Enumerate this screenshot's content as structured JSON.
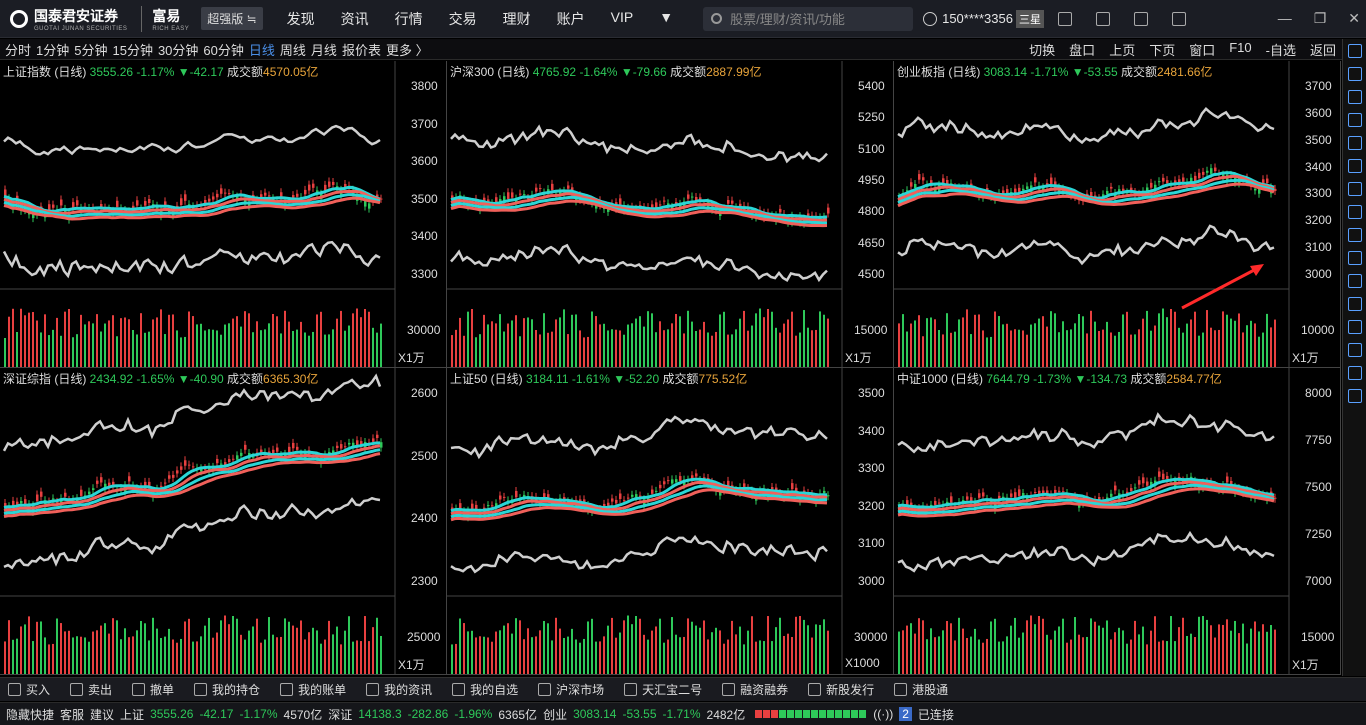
{
  "topbar": {
    "brand": "国泰君安证券",
    "brand_sub": "GUOTAI JUNAN SECURITIES",
    "brand2": "富易",
    "brand2_sub": "RICH EASY",
    "edition": "超强版 ≒",
    "nav": [
      "发现",
      "资讯",
      "行情",
      "交易",
      "理财",
      "账户",
      "VIP"
    ],
    "search_placeholder": "股票/理财/资讯/功能",
    "user": "150****3356",
    "star": "三星"
  },
  "periods": [
    "分时",
    "1分钟",
    "5分钟",
    "15分钟",
    "30分钟",
    "60分钟",
    "日线",
    "周线",
    "月线",
    "报价表",
    "更多 〉"
  ],
  "active_period": "日线",
  "toolbar_right": [
    "切换",
    "盘口",
    "上页",
    "下页",
    "窗口",
    "F10",
    "-自选",
    "返回"
  ],
  "panels": [
    {
      "name": "上证指数 (日线)",
      "price": "3555.26",
      "pct": "-1.17%",
      "chg": "▼-42.17",
      "amt_label": "成交额",
      "amt": "4570.05亿",
      "axis": [
        "3800",
        "3700",
        "3600",
        "3500",
        "3400",
        "3300"
      ],
      "vol_axis": "30000",
      "unit": "X1万"
    },
    {
      "name": "沪深300 (日线)",
      "price": "4765.92",
      "pct": "-1.64%",
      "chg": "▼-79.66",
      "amt_label": "成交额",
      "amt": "2887.99亿",
      "axis": [
        "5400",
        "5250",
        "5100",
        "4950",
        "4800",
        "4650",
        "4500"
      ],
      "vol_axis": "15000",
      "unit": "X1万"
    },
    {
      "name": "创业板指 (日线)",
      "price": "3083.14",
      "pct": "-1.71%",
      "chg": "▼-53.55",
      "amt_label": "成交额",
      "amt": "2481.66亿",
      "axis": [
        "3700",
        "3600",
        "3500",
        "3400",
        "3300",
        "3200",
        "3100",
        "3000"
      ],
      "vol_axis": "10000",
      "unit": "X1万"
    },
    {
      "name": "深证综指 (日线)",
      "price": "2434.92",
      "pct": "-1.65%",
      "chg": "▼-40.90",
      "amt_label": "成交额",
      "amt": "6365.30亿",
      "axis": [
        "2600",
        "2500",
        "2400",
        "2300"
      ],
      "vol_axis": "25000",
      "unit": "X1万"
    },
    {
      "name": "上证50 (日线)",
      "price": "3184.11",
      "pct": "-1.61%",
      "chg": "▼-52.20",
      "amt_label": "成交额",
      "amt": "775.52亿",
      "axis": [
        "3500",
        "3400",
        "3300",
        "3200",
        "3100",
        "3000"
      ],
      "vol_axis": "30000",
      "unit": "X1000"
    },
    {
      "name": "中证1000 (日线)",
      "price": "7644.79",
      "pct": "-1.73%",
      "chg": "▼-134.73",
      "amt_label": "成交额",
      "amt": "2584.77亿",
      "axis": [
        "8000",
        "7750",
        "7500",
        "7250",
        "7000"
      ],
      "vol_axis": "15000",
      "unit": "X1万"
    }
  ],
  "tradebar": [
    "买入",
    "卖出",
    "撤单",
    "我的持仓",
    "我的账单",
    "我的资讯",
    "我的自选",
    "沪深市场",
    "天汇宝二号",
    "融资融券",
    "新股发行",
    "港股通"
  ],
  "statusbar": {
    "hide": "隐藏快捷",
    "service": "客服",
    "suggest": "建议",
    "sh_label": "上证",
    "sh_price": "3555.26",
    "sh_chg": "-42.17",
    "sh_pct": "-1.17%",
    "sh_amt": "4570亿",
    "sz_label": "深证",
    "sz_price": "14138.3",
    "sz_chg": "-282.86",
    "sz_pct": "-1.96%",
    "sz_amt": "6365亿",
    "cy_label": "创业",
    "cy_price": "3083.14",
    "cy_chg": "-53.55",
    "cy_pct": "-1.71%",
    "cy_amt": "2482亿",
    "conn_count": "2",
    "conn": "已连接"
  },
  "colors": {
    "up": "#e84040",
    "down": "#2ec95a",
    "cyan_ma": "#2ad6d6",
    "red_ma": "#f0605a",
    "band": "#cfcfcf"
  }
}
